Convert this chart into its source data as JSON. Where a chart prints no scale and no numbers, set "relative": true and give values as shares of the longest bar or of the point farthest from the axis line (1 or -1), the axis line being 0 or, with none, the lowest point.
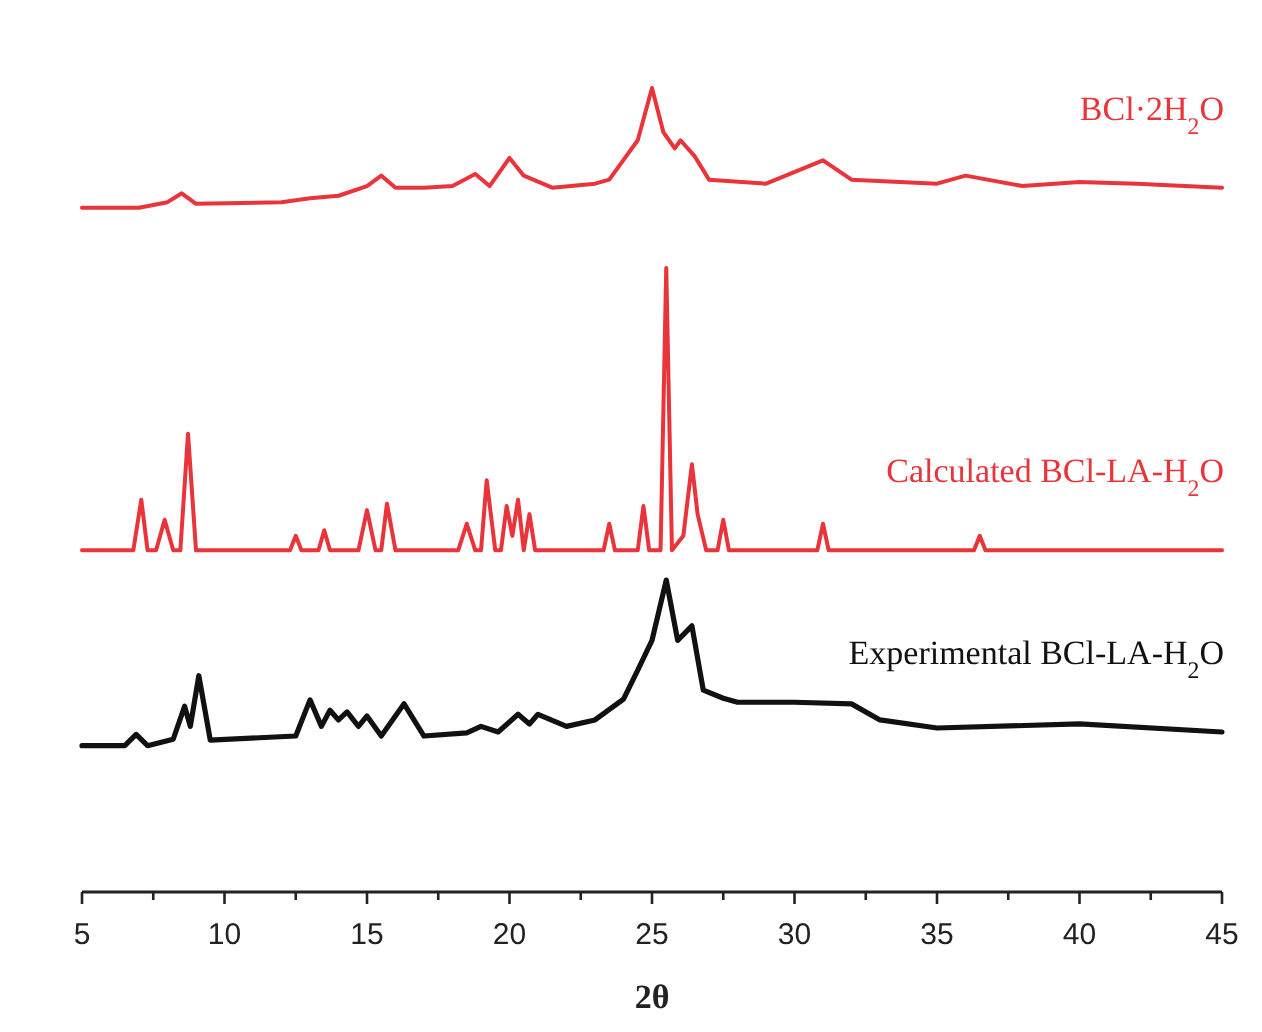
{
  "chart_data": {
    "type": "line",
    "relative": true,
    "xlabel": "2θ",
    "xlim": [
      5,
      45
    ],
    "xticks": [
      5,
      {
        "value": 7.5,
        "label": null
      },
      10,
      {
        "value": 12.5,
        "label": null
      },
      15,
      {
        "value": 17.5,
        "label": null
      },
      20,
      {
        "value": 22.5,
        "label": null
      },
      25,
      {
        "value": 27.5,
        "label": null
      },
      30,
      {
        "value": 32.5,
        "label": null
      },
      35,
      {
        "value": 37.5,
        "label": null
      },
      40,
      {
        "value": 42.5,
        "label": null
      },
      45
    ],
    "series": [
      {
        "name": "BCl·2H$_{2}$O",
        "color": "#e8343a",
        "x": [
          5,
          7,
          8,
          8.5,
          9,
          12,
          13,
          14,
          15,
          15.5,
          16,
          17,
          18,
          18.8,
          19.3,
          20,
          20.5,
          21.5,
          23,
          23.5,
          24.5,
          25,
          25.4,
          25.8,
          26,
          26.5,
          27,
          29,
          31,
          32,
          35,
          36,
          38,
          40,
          42,
          45
        ],
        "values": [
          0.851,
          0.851,
          0.858,
          0.869,
          0.856,
          0.858,
          0.863,
          0.866,
          0.878,
          0.891,
          0.876,
          0.876,
          0.878,
          0.893,
          0.878,
          0.913,
          0.891,
          0.876,
          0.881,
          0.886,
          0.935,
          1,
          0.945,
          0.925,
          0.935,
          0.915,
          0.886,
          0.881,
          0.91,
          0.886,
          0.881,
          0.891,
          0.878,
          0.883,
          0.881,
          0.876
        ]
      },
      {
        "name": "Calculated BCl-LA-H$_{2}$O",
        "color": "#e8343a",
        "x": [
          5,
          6.8,
          7.08,
          7.3,
          7.6,
          7.9,
          8.2,
          8.45,
          8.72,
          9.0,
          12.3,
          12.5,
          12.7,
          13.3,
          13.5,
          13.7,
          14.7,
          15.0,
          15.3,
          15.5,
          15.7,
          16.0,
          18.2,
          18.5,
          18.8,
          19.0,
          19.2,
          19.5,
          19.7,
          19.9,
          20.1,
          20.3,
          20.5,
          20.7,
          20.9,
          23.3,
          23.5,
          23.7,
          24.5,
          24.7,
          24.9,
          25.3,
          25.5,
          25.7,
          26.1,
          26.4,
          26.6,
          26.9,
          27.3,
          27.5,
          27.7,
          30.8,
          31,
          31.2,
          36.3,
          36.5,
          36.7,
          45
        ],
        "values": [
          0.425,
          0.425,
          0.488,
          0.425,
          0.425,
          0.463,
          0.425,
          0.425,
          0.57,
          0.425,
          0.425,
          0.443,
          0.425,
          0.425,
          0.45,
          0.425,
          0.425,
          0.475,
          0.425,
          0.425,
          0.483,
          0.425,
          0.425,
          0.458,
          0.425,
          0.425,
          0.512,
          0.425,
          0.425,
          0.48,
          0.443,
          0.488,
          0.425,
          0.47,
          0.425,
          0.425,
          0.458,
          0.425,
          0.425,
          0.48,
          0.425,
          0.425,
          0.776,
          0.425,
          0.443,
          0.532,
          0.47,
          0.425,
          0.425,
          0.463,
          0.425,
          0.425,
          0.458,
          0.425,
          0.425,
          0.443,
          0.425,
          0.425
        ]
      },
      {
        "name": "Experimental BCl-LA-H$_{2}$O",
        "color": "#111111",
        "x": [
          5,
          6.5,
          6.9,
          7.3,
          8.2,
          8.6,
          8.8,
          9.1,
          9.5,
          12.5,
          13.0,
          13.4,
          13.7,
          14.0,
          14.3,
          14.7,
          15.0,
          15.5,
          16.3,
          17.0,
          18.5,
          19.0,
          19.6,
          20.3,
          20.7,
          21.0,
          22,
          23,
          24,
          24.5,
          25,
          25.5,
          25.9,
          26.4,
          26.8,
          27.5,
          28,
          30,
          32,
          33,
          35,
          40,
          45
        ],
        "values": [
          0.182,
          0.182,
          0.196,
          0.182,
          0.19,
          0.231,
          0.206,
          0.269,
          0.189,
          0.194,
          0.239,
          0.206,
          0.226,
          0.214,
          0.224,
          0.206,
          0.219,
          0.194,
          0.234,
          0.194,
          0.198,
          0.206,
          0.199,
          0.221,
          0.209,
          0.221,
          0.206,
          0.214,
          0.24,
          0.276,
          0.313,
          0.388,
          0.313,
          0.331,
          0.251,
          0.241,
          0.236,
          0.236,
          0.234,
          0.214,
          0.204,
          0.209,
          0.199
        ]
      }
    ]
  }
}
